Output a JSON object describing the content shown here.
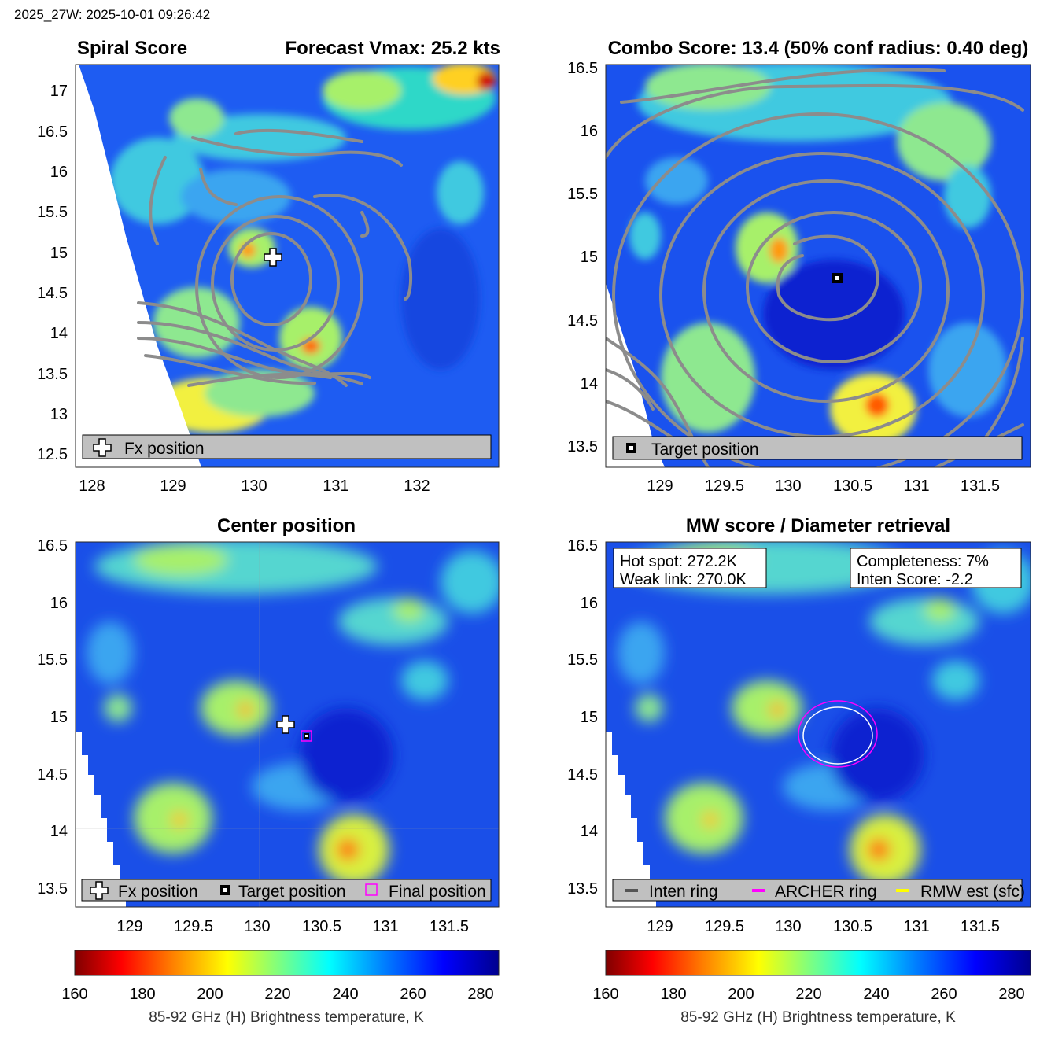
{
  "header": {
    "title": "2025_27W: 2025-10-01 09:26:42"
  },
  "palette": {
    "jet": [
      "#7f0000",
      "#ff0000",
      "#ff7f00",
      "#ffff00",
      "#7fff7f",
      "#00ffff",
      "#007fff",
      "#0000ff",
      "#00008f"
    ],
    "contour": "#8c8c8c",
    "legend_bg": "#c0c0c0",
    "archer": "#ff00ff",
    "rmw": "#ffff00",
    "inten": "#555555"
  },
  "panels": {
    "spiral": {
      "title_left": "Spiral Score",
      "title_right": "Forecast Vmax: 25.2 kts",
      "xticks": [
        "128",
        "129",
        "130",
        "131",
        "132"
      ],
      "yticks": [
        "17",
        "16.5",
        "16",
        "15.5",
        "15",
        "14.5",
        "14",
        "13.5",
        "13",
        "12.5"
      ],
      "legend": [
        "Fx position"
      ],
      "icons": [
        "plus-marker-icon"
      ]
    },
    "combo": {
      "title": "Combo Score: 13.4  (50% conf radius: 0.40 deg)",
      "xticks": [
        "129",
        "129.5",
        "130",
        "130.5",
        "131",
        "131.5"
      ],
      "yticks": [
        "16.5",
        "16",
        "15.5",
        "15",
        "14.5",
        "14",
        "13.5"
      ],
      "legend": [
        "Target position"
      ],
      "icons": [
        "square-marker-icon"
      ]
    },
    "center": {
      "title": "Center position",
      "xticks": [
        "129",
        "129.5",
        "130",
        "130.5",
        "131",
        "131.5"
      ],
      "yticks": [
        "16.5",
        "16",
        "15.5",
        "15",
        "14.5",
        "14",
        "13.5"
      ],
      "legend": [
        "Fx position",
        "Target position",
        "Final position"
      ]
    },
    "mw": {
      "title": "MW score / Diameter retrieval",
      "xticks": [
        "129",
        "129.5",
        "130",
        "130.5",
        "131",
        "131.5"
      ],
      "yticks": [
        "16.5",
        "16",
        "15.5",
        "15",
        "14.5",
        "14",
        "13.5"
      ],
      "box_left": [
        "Hot spot: 272.2K",
        "Weak link: 270.0K"
      ],
      "box_right": [
        "Completeness: 7%",
        "Inten Score: -2.2"
      ],
      "legend": [
        "Inten ring",
        "ARCHER ring",
        "RMW est (sfc)"
      ]
    }
  },
  "colorbar": {
    "ticks": [
      "160",
      "180",
      "200",
      "220",
      "240",
      "260",
      "280"
    ],
    "label": "85-92 GHz (H) Brightness temperature, K"
  }
}
